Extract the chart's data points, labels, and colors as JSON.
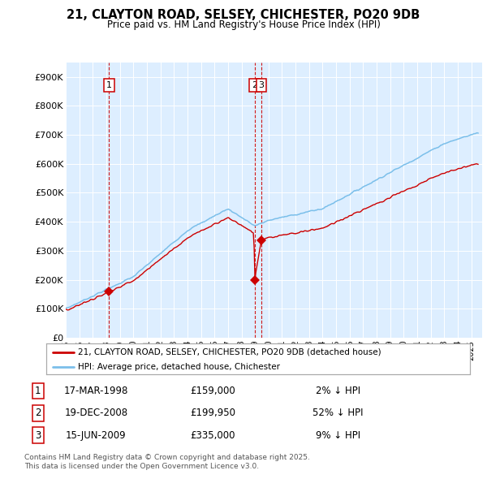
{
  "title_line1": "21, CLAYTON ROAD, SELSEY, CHICHESTER, PO20 9DB",
  "title_line2": "Price paid vs. HM Land Registry's House Price Index (HPI)",
  "ylim": [
    0,
    950000
  ],
  "yticks": [
    0,
    100000,
    200000,
    300000,
    400000,
    500000,
    600000,
    700000,
    800000,
    900000
  ],
  "ytick_labels": [
    "£0",
    "£100K",
    "£200K",
    "£300K",
    "£400K",
    "£500K",
    "£600K",
    "£700K",
    "£800K",
    "£900K"
  ],
  "hpi_color": "#7bbfea",
  "price_color": "#cc0000",
  "vline_color": "#cc0000",
  "background_color": "#ddeeff",
  "legend_label_red": "21, CLAYTON ROAD, SELSEY, CHICHESTER, PO20 9DB (detached house)",
  "legend_label_blue": "HPI: Average price, detached house, Chichester",
  "sales": [
    {
      "num": 1,
      "date_num": 1998.21,
      "price": 159000,
      "label": "17-MAR-1998",
      "pct": "2%",
      "dir": "↓"
    },
    {
      "num": 2,
      "date_num": 2008.97,
      "price": 199950,
      "label": "19-DEC-2008",
      "pct": "52%",
      "dir": "↓"
    },
    {
      "num": 3,
      "date_num": 2009.46,
      "price": 335000,
      "label": "15-JUN-2009",
      "pct": "9%",
      "dir": "↓"
    }
  ],
  "footer_line1": "Contains HM Land Registry data © Crown copyright and database right 2025.",
  "footer_line2": "This data is licensed under the Open Government Licence v3.0.",
  "xlim_left": 1995.0,
  "xlim_right": 2025.8
}
